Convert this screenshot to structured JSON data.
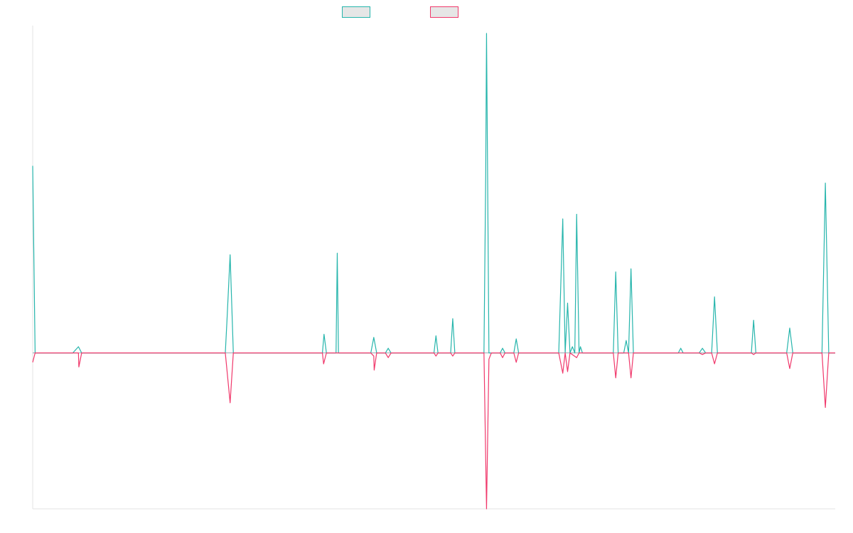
{
  "colors": {
    "series_0": "#26b5ac",
    "series_1": "#f0386b",
    "axis": "#e3e3e3",
    "legend_fill": "#e6e6e6"
  },
  "chart_data": {
    "type": "line",
    "title": "",
    "xlabel": "",
    "ylabel": "",
    "legend": {
      "placement": "top-center",
      "entries": [
        "",
        ""
      ]
    },
    "grid": false,
    "ylim": [
      -100,
      210
    ],
    "xlim": [
      0,
      1
    ],
    "series": [
      {
        "color": "#26b5ac",
        "points": [
          [
            0.0,
            120
          ],
          [
            0.003,
            0
          ],
          [
            0.05,
            0
          ],
          [
            0.057,
            4
          ],
          [
            0.061,
            0
          ],
          [
            0.24,
            0
          ],
          [
            0.242,
            20
          ],
          [
            0.246,
            63
          ],
          [
            0.25,
            0
          ],
          [
            0.361,
            0
          ],
          [
            0.363,
            12
          ],
          [
            0.366,
            0
          ],
          [
            0.378,
            0
          ],
          [
            0.3795,
            64
          ],
          [
            0.381,
            0
          ],
          [
            0.4213,
            0
          ],
          [
            0.425,
            10
          ],
          [
            0.4286,
            0
          ],
          [
            0.4395,
            0
          ],
          [
            0.443,
            3
          ],
          [
            0.4465,
            0
          ],
          [
            0.5,
            0
          ],
          [
            0.5025,
            11
          ],
          [
            0.505,
            0
          ],
          [
            0.5208,
            0
          ],
          [
            0.5234,
            22
          ],
          [
            0.526,
            0
          ],
          [
            0.5623,
            0
          ],
          [
            0.5645,
            115
          ],
          [
            0.5655,
            205
          ],
          [
            0.5685,
            0
          ],
          [
            0.5825,
            0
          ],
          [
            0.5855,
            3
          ],
          [
            0.5885,
            0
          ],
          [
            0.5995,
            0
          ],
          [
            0.6025,
            9
          ],
          [
            0.6055,
            0
          ],
          [
            0.6555,
            0
          ],
          [
            0.6605,
            86
          ],
          [
            0.6635,
            0
          ],
          [
            0.6665,
            32
          ],
          [
            0.6695,
            0
          ],
          [
            0.6725,
            4
          ],
          [
            0.6755,
            0
          ],
          [
            0.6778,
            89
          ],
          [
            0.6808,
            0
          ],
          [
            0.6825,
            4
          ],
          [
            0.685,
            0
          ],
          [
            0.7235,
            0
          ],
          [
            0.7265,
            52
          ],
          [
            0.7295,
            0
          ],
          [
            0.7365,
            0
          ],
          [
            0.7395,
            8
          ],
          [
            0.7425,
            0
          ],
          [
            0.7425,
            0
          ],
          [
            0.7455,
            54
          ],
          [
            0.7485,
            0
          ],
          [
            0.8045,
            0
          ],
          [
            0.8075,
            3
          ],
          [
            0.8105,
            0
          ],
          [
            0.8305,
            0
          ],
          [
            0.8345,
            3
          ],
          [
            0.8385,
            0
          ],
          [
            0.846,
            0
          ],
          [
            0.8496,
            36
          ],
          [
            0.8532,
            0
          ],
          [
            0.8955,
            0
          ],
          [
            0.8983,
            21
          ],
          [
            0.9011,
            0
          ],
          [
            0.9395,
            0
          ],
          [
            0.9433,
            16
          ],
          [
            0.9471,
            0
          ],
          [
            0.9835,
            0
          ],
          [
            0.9877,
            109
          ],
          [
            0.9919,
            0
          ],
          [
            1.0,
            0
          ]
        ]
      },
      {
        "color": "#f0386b",
        "points": [
          [
            0.0,
            -6
          ],
          [
            0.003,
            0
          ],
          [
            0.057,
            0
          ],
          [
            0.0575,
            -9
          ],
          [
            0.061,
            0
          ],
          [
            0.24,
            0
          ],
          [
            0.246,
            -32
          ],
          [
            0.25,
            0
          ],
          [
            0.361,
            0
          ],
          [
            0.3625,
            -7
          ],
          [
            0.366,
            0
          ],
          [
            0.4213,
            0
          ],
          [
            0.425,
            -2
          ],
          [
            0.4286,
            0
          ],
          [
            0.4395,
            0
          ],
          [
            0.4255,
            -11
          ],
          [
            0.4465,
            0
          ],
          [
            0.4395,
            0
          ],
          [
            0.443,
            -3
          ],
          [
            0.4465,
            0
          ],
          [
            0.5,
            0
          ],
          [
            0.5025,
            -2
          ],
          [
            0.505,
            0
          ],
          [
            0.5208,
            0
          ],
          [
            0.5234,
            -2
          ],
          [
            0.526,
            0
          ],
          [
            0.5623,
            0
          ],
          [
            0.5655,
            -100
          ],
          [
            0.5685,
            -4
          ],
          [
            0.5715,
            0
          ],
          [
            0.5825,
            0
          ],
          [
            0.5855,
            -3
          ],
          [
            0.5885,
            0
          ],
          [
            0.5995,
            0
          ],
          [
            0.6025,
            -6
          ],
          [
            0.6055,
            0
          ],
          [
            0.6555,
            0
          ],
          [
            0.6605,
            -13
          ],
          [
            0.6635,
            0
          ],
          [
            0.6665,
            -12
          ],
          [
            0.6695,
            0
          ],
          [
            0.6778,
            -3
          ],
          [
            0.6808,
            0
          ],
          [
            0.7235,
            0
          ],
          [
            0.7265,
            -16
          ],
          [
            0.7295,
            0
          ],
          [
            0.7425,
            0
          ],
          [
            0.7455,
            -16
          ],
          [
            0.7485,
            0
          ],
          [
            0.8305,
            0
          ],
          [
            0.8345,
            -1
          ],
          [
            0.8385,
            0
          ],
          [
            0.846,
            0
          ],
          [
            0.8496,
            -7
          ],
          [
            0.8532,
            0
          ],
          [
            0.8955,
            0
          ],
          [
            0.8983,
            -1
          ],
          [
            0.9011,
            0
          ],
          [
            0.9395,
            0
          ],
          [
            0.9433,
            -10
          ],
          [
            0.9471,
            0
          ],
          [
            0.9835,
            0
          ],
          [
            0.9877,
            -35
          ],
          [
            0.9919,
            0
          ],
          [
            1.0,
            0
          ]
        ]
      }
    ]
  }
}
